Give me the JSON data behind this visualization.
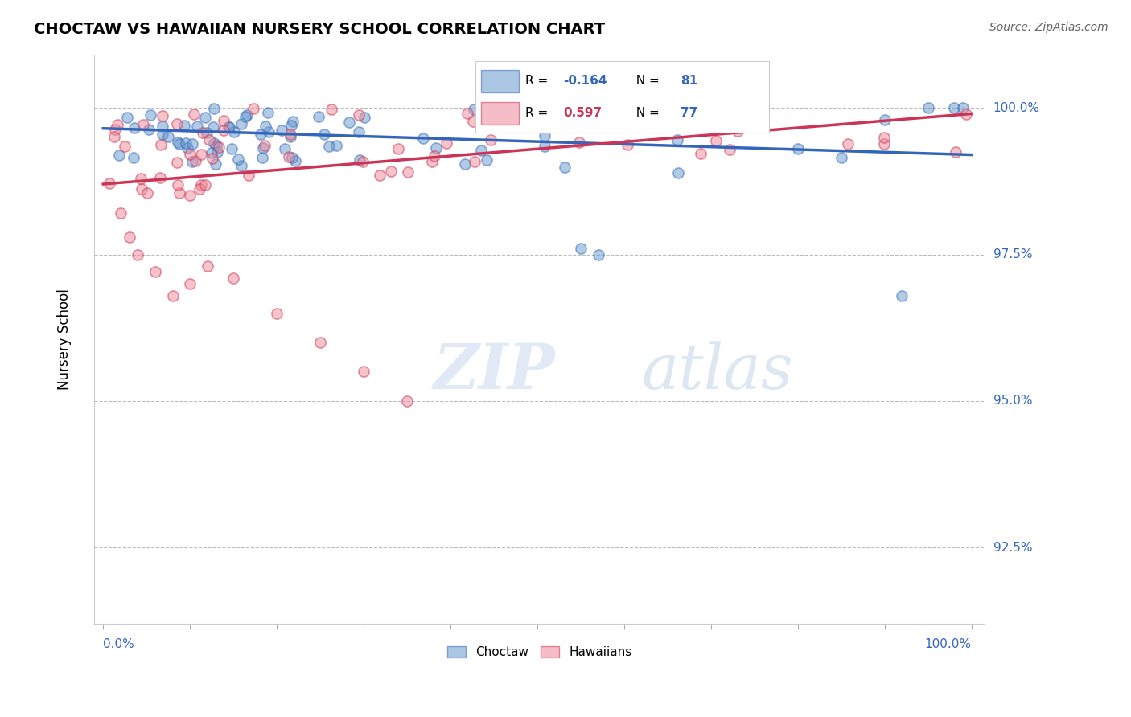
{
  "title": "CHOCTAW VS HAWAIIAN NURSERY SCHOOL CORRELATION CHART",
  "source": "Source: ZipAtlas.com",
  "ylabel": "Nursery School",
  "ytick_values": [
    92.5,
    95.0,
    97.5,
    100.0
  ],
  "ylim": [
    91.2,
    100.9
  ],
  "xlim": [
    -1.0,
    101.5
  ],
  "R_blue": -0.164,
  "N_blue": 81,
  "R_pink": 0.597,
  "N_pink": 77,
  "blue_color": "#6699cc",
  "pink_color": "#ee8899",
  "blue_line_color": "#3366bb",
  "pink_line_color": "#cc3355",
  "blue_line_start_y": 99.65,
  "blue_line_end_y": 99.2,
  "pink_line_start_y": 98.7,
  "pink_line_end_y": 99.9
}
